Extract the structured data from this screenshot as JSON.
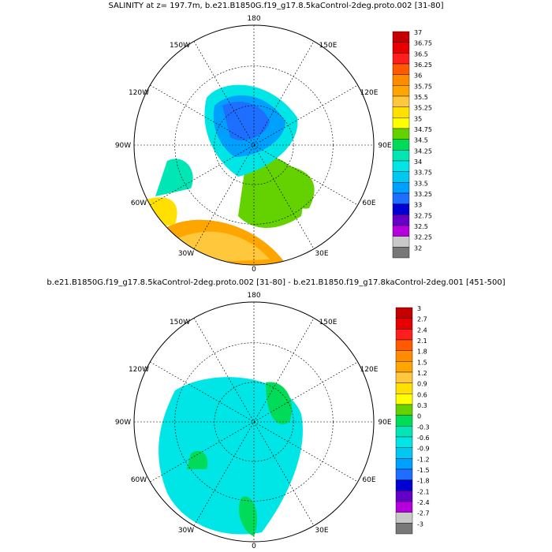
{
  "panels": [
    {
      "id": "top",
      "title": "SALINITY at z= 197.7m, b.e21.B1850G.f19_g17.8.5kaControl-2deg.proto.002 [31-80]",
      "legend_levels": [
        "37",
        "36.75",
        "36.5",
        "36.25",
        "36",
        "35.75",
        "35.5",
        "35.25",
        "35",
        "34.75",
        "34.5",
        "34.25",
        "34",
        "33.75",
        "33.5",
        "33.25",
        "33",
        "32.75",
        "32.5",
        "32.25",
        "32"
      ],
      "legend_colors": [
        "#c40000",
        "#e60000",
        "#ff1e1e",
        "#ff5a00",
        "#ff8c00",
        "#ffa500",
        "#ffc83c",
        "#ffe000",
        "#ffff00",
        "#64d200",
        "#00dc5a",
        "#00e6b4",
        "#00e6e6",
        "#00c8f0",
        "#00a0ff",
        "#1e6eff",
        "#0000d2",
        "#6400c8",
        "#b400dc",
        "#c8c8c8",
        "#787878"
      ]
    },
    {
      "id": "bottom",
      "title": "b.e21.B1850G.f19_g17.8.5kaControl-2deg.proto.002 [31-80] - b.e21.B1850.f19_g17.8kaControl-2deg.001 [451-500]",
      "legend_levels": [
        "3",
        "2.7",
        "2.4",
        "2.1",
        "1.8",
        "1.5",
        "1.2",
        "0.9",
        "0.6",
        "0.3",
        "0",
        "-0.3",
        "-0.6",
        "-0.9",
        "-1.2",
        "-1.5",
        "-1.8",
        "-2.1",
        "-2.4",
        "-2.7",
        "-3"
      ],
      "legend_colors": [
        "#c40000",
        "#e60000",
        "#ff1e1e",
        "#ff5a00",
        "#ff8c00",
        "#ffa500",
        "#ffc83c",
        "#ffe000",
        "#ffff00",
        "#64d200",
        "#00dc5a",
        "#00e6b4",
        "#00e6e6",
        "#00c8f0",
        "#00a0ff",
        "#1e6eff",
        "#0000d2",
        "#6400c8",
        "#b400dc",
        "#c8c8c8",
        "#787878"
      ]
    }
  ],
  "lon_labels": {
    "top": "180",
    "top_left": "150W",
    "top_right": "150E",
    "upper_left": "120W",
    "upper_right": "120E",
    "left": "90W",
    "right": "90E",
    "lower_left": "60W",
    "lower_right": "60E",
    "bottom_left": "30W",
    "bottom_right": "30E",
    "bottom": "0"
  }
}
